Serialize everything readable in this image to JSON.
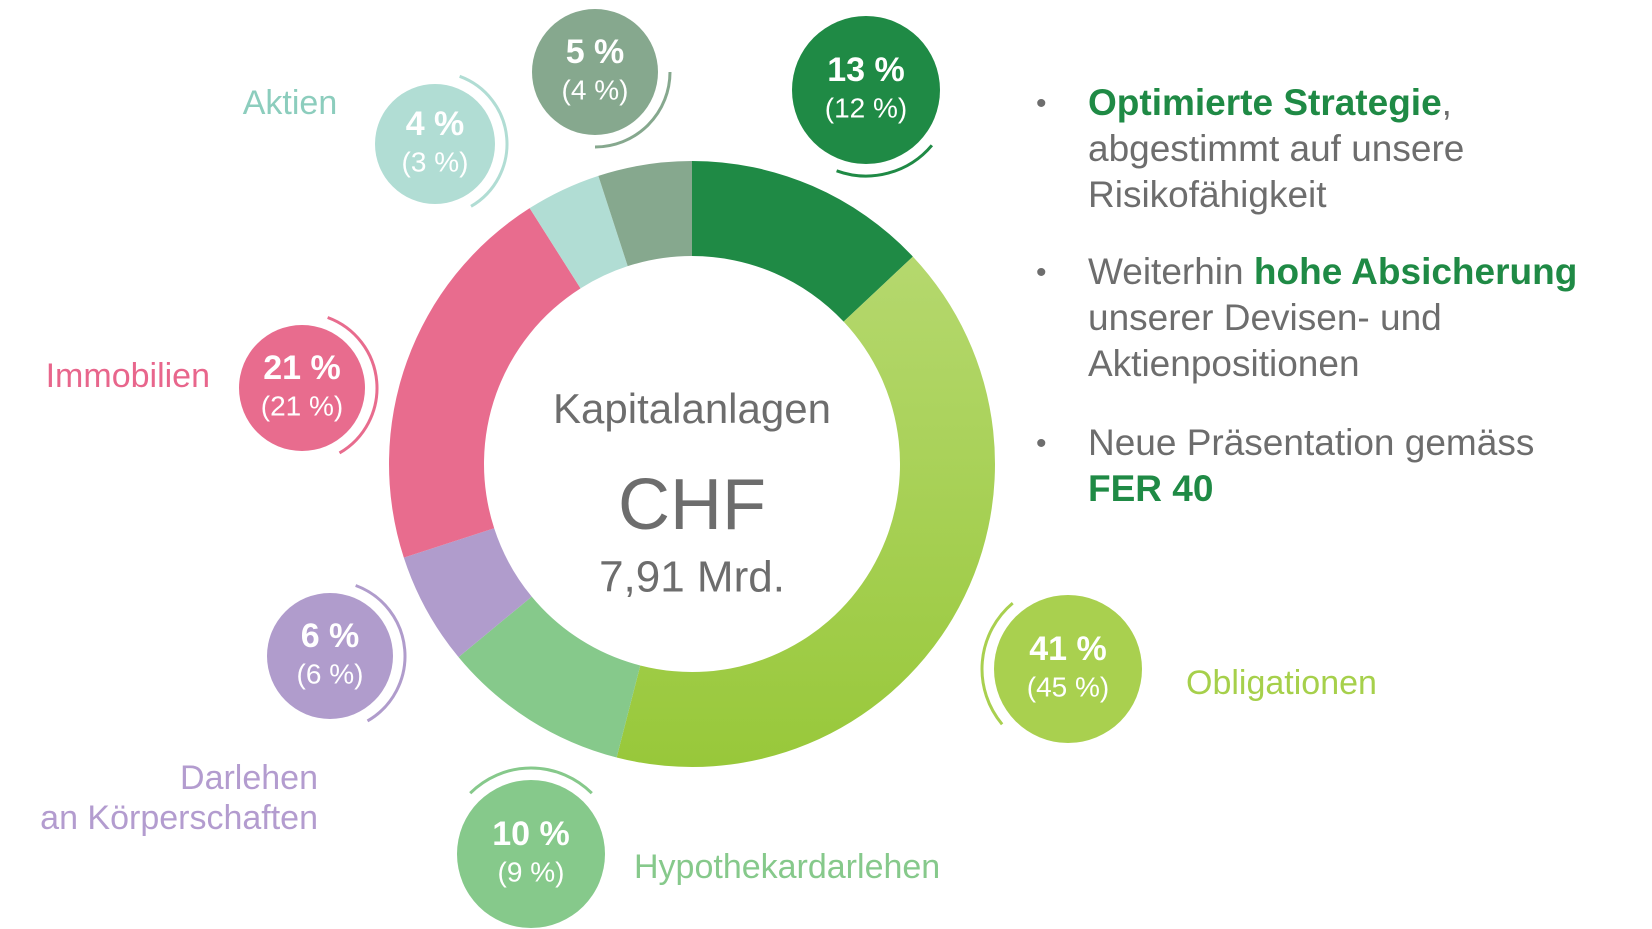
{
  "chart_data": {
    "type": "donut",
    "center_title": "Kapitalanlagen",
    "center_currency": "CHF",
    "center_amount": "7,91 Mrd.",
    "categories": [
      null,
      "Obligationen",
      "Hypothekardarlehen",
      [
        "Darlehen",
        "an Körperschaften"
      ],
      "Immobilien",
      "Aktien",
      null
    ],
    "values": [
      13,
      41,
      10,
      6,
      21,
      4,
      5
    ],
    "value_labels": [
      "13 %",
      "41 %",
      "10 %",
      "6 %",
      "21 %",
      "4 %",
      "5 %"
    ],
    "previous_values": [
      12,
      45,
      9,
      6,
      21,
      3,
      4
    ],
    "previous_labels": [
      "(12 %)",
      "(45 %)",
      "(9 %)",
      "(6 %)",
      "(21 %)",
      "(3 %)",
      "(4 %)"
    ],
    "colors": [
      "#1f8a45",
      "#a6d04b",
      "#86c98b",
      "#b09ccc",
      "#e86c8e",
      "#b1ddd4",
      "#86a88e"
    ],
    "label_colors": [
      null,
      "#a6d04b",
      "#86c98b",
      "#b39ccf",
      "#e8668c",
      "#8ccdbd",
      null
    ]
  },
  "bullets": [
    [
      [
        {
          "text": "Optimierte Strategie",
          "bold": true
        },
        {
          "text": ",",
          "bold": false
        }
      ],
      [
        {
          "text": "abgestimmt auf unsere",
          "bold": false
        }
      ],
      [
        {
          "text": "Risikofähigkeit",
          "bold": false
        }
      ]
    ],
    [
      [
        {
          "text": "Weiterhin ",
          "bold": false
        },
        {
          "text": "hohe Absicherung",
          "bold": true
        }
      ],
      [
        {
          "text": "unserer Devisen- und",
          "bold": false
        }
      ],
      [
        {
          "text": "Aktienpositionen",
          "bold": false
        }
      ]
    ],
    [
      [
        {
          "text": "Neue Präsentation gemäss",
          "bold": false
        }
      ],
      [
        {
          "text": "FER 40",
          "bold": true
        }
      ]
    ]
  ],
  "bullet_symbol": "•"
}
